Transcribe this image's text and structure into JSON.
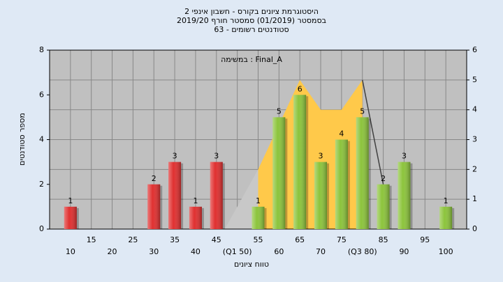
{
  "chart_data": {
    "type": "bar",
    "title": "היסטוגרמת ציונים בקורס - חשבון אינפי 2",
    "subtitle": "בסמסטר  (01/2019)  סמסטר חורף 2019/20",
    "subtitle2": "סטודנטים רשומים - 63",
    "annotation": "במשימה : Final_A",
    "ylabel": "מספר סטודנטים",
    "xlabel": "טווח ציונים",
    "x": [
      10,
      15,
      20,
      25,
      30,
      35,
      40,
      45,
      50,
      55,
      60,
      65,
      70,
      75,
      80,
      85,
      90,
      95,
      100
    ],
    "values": [
      1,
      0,
      0,
      0,
      2,
      3,
      1,
      3,
      0,
      1,
      5,
      6,
      3,
      4,
      5,
      2,
      3,
      0,
      1
    ],
    "colors": [
      "#e03030",
      "#e03030",
      "#e03030",
      "#e03030",
      "#e03030",
      "#e03030",
      "#e03030",
      "#e03030",
      "#e03030",
      "#8cc43c",
      "#8cc43c",
      "#8cc43c",
      "#8cc43c",
      "#8cc43c",
      "#8cc43c",
      "#8cc43c",
      "#8cc43c",
      "#8cc43c",
      "#8cc43c"
    ],
    "xlim": [
      5,
      105
    ],
    "xticks": [
      10,
      15,
      20,
      25,
      30,
      35,
      40,
      45,
      {
        "value": 50,
        "label": "(Q1 50)"
      },
      55,
      60,
      65,
      70,
      75,
      {
        "value": 80,
        "label": "(Q3 80)"
      },
      85,
      90,
      95,
      100
    ],
    "ylim": [
      0,
      8
    ],
    "yticks": [
      0,
      2,
      4,
      6,
      8
    ],
    "y2lim": [
      0,
      6
    ],
    "y2ticks": [
      0,
      1,
      2,
      3,
      4,
      5,
      6
    ],
    "areas": [
      {
        "color": "#c8c8c8",
        "axis": "y2",
        "x": [
          47,
          55,
          55
        ],
        "values": [
          0,
          2,
          0
        ]
      },
      {
        "color": "#ffc94a",
        "axis": "y2",
        "x": [
          55,
          65,
          70,
          75,
          80,
          80,
          55
        ],
        "values": [
          2,
          5,
          4,
          4,
          5,
          0,
          0
        ]
      }
    ],
    "line": {
      "color": "#404040",
      "axis": "y2",
      "x": [
        80,
        85
      ],
      "values": [
        5,
        1.5
      ]
    },
    "grid": true
  }
}
